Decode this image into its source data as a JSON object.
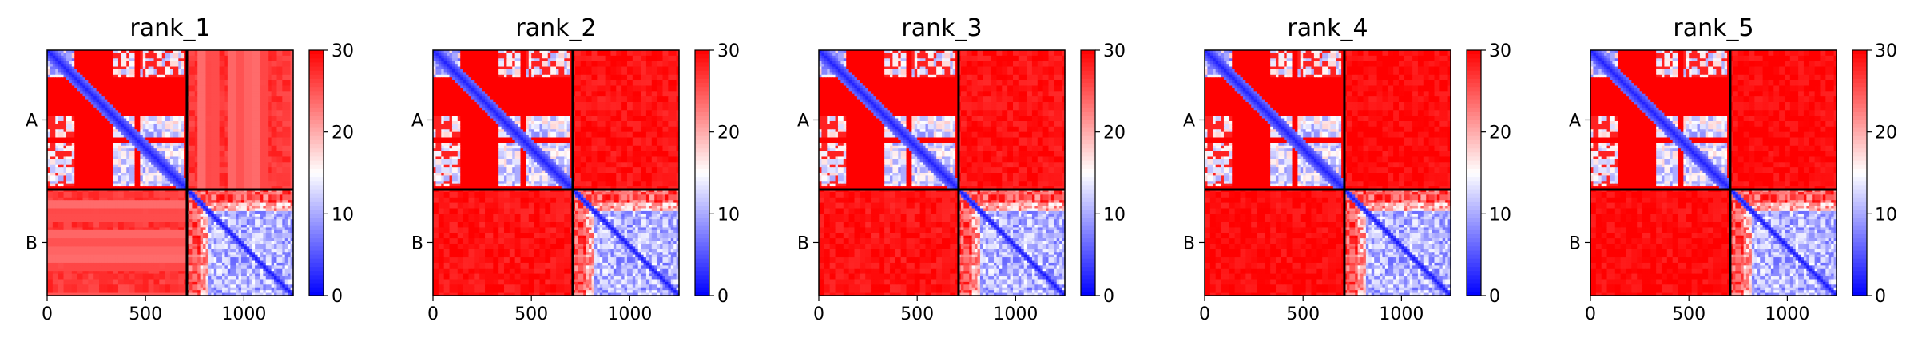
{
  "chart_data": {
    "type": "heatmap",
    "colormap": {
      "low": "#0000ff",
      "mid": "#ffffff",
      "high": "#ff0000"
    },
    "colorbar": {
      "min": 0,
      "max": 30,
      "ticks": [
        "0",
        "10",
        "20",
        "30"
      ]
    },
    "x_ticks": [
      {
        "value": 0,
        "label": "0"
      },
      {
        "value": 500,
        "label": "500"
      },
      {
        "value": 1000,
        "label": "1000"
      }
    ],
    "x_range": [
      0,
      1250
    ],
    "chain_boundary": 710,
    "y_chains": [
      {
        "label": "A",
        "start": 0,
        "end": 710
      },
      {
        "label": "B",
        "start": 710,
        "end": 1250
      }
    ],
    "panels": [
      {
        "title": "rank_1",
        "offdiag_level": 27,
        "strip_level": 20
      },
      {
        "title": "rank_2",
        "offdiag_level": 29,
        "strip_level": 27
      },
      {
        "title": "rank_3",
        "offdiag_level": 29,
        "strip_level": 27
      },
      {
        "title": "rank_4",
        "offdiag_level": 29.5,
        "strip_level": 28
      },
      {
        "title": "rank_5",
        "offdiag_level": 29.5,
        "strip_level": 28
      }
    ]
  }
}
